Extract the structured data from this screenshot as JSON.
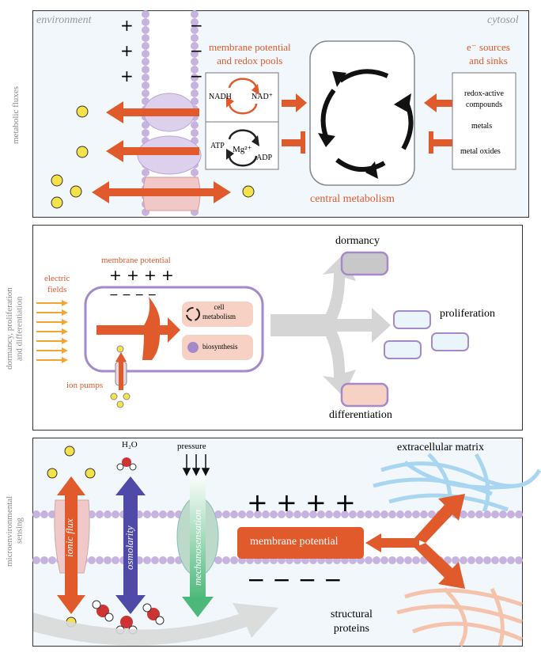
{
  "panel1": {
    "side_label": "metabolic fluxes",
    "environment": "environment",
    "cytosol": "cytosol",
    "membrane_potential_line1": "membrane potential",
    "membrane_potential_line2": "and redox pools",
    "electron_sources_line1": "e⁻ sources",
    "electron_sources_line2": "and sinks",
    "nadh": "NADH",
    "nad": "NAD⁺",
    "atp": "ATP",
    "mg": "Mg²⁺",
    "adp": "ADP",
    "redox_active_line1": "redox-active",
    "redox_active_line2": "compounds",
    "metals": "metals",
    "metal_oxides": "metal oxides",
    "central_metabolism": "central metabolism",
    "plus": "+",
    "minus": "−"
  },
  "panel2": {
    "side_label_line1": "dormancy, proliferation",
    "side_label_line2": "and differentiation",
    "electric_fields_line1": "electric",
    "electric_fields_line2": "fields",
    "membrane_potential": "membrane potential",
    "plus_row": "+ + + +",
    "minus_row": "− − − −",
    "cell_metabolism_line1": "cell",
    "cell_metabolism_line2": "metabolism",
    "biosynthesis": "biosynthesis",
    "ion_pumps": "ion pumps",
    "dormancy": "dormancy",
    "proliferation": "proliferation",
    "differentiation": "differentiation"
  },
  "panel3": {
    "side_label_line1": "microenvironmental",
    "side_label_line2": "sensing",
    "h2o": "H₂O",
    "pressure": "pressure",
    "ionic_flux": "ionic flux",
    "osmolarity": "osmolarity",
    "mechanosensation": "mechanosensation",
    "extracellular_matrix": "extracellular matrix",
    "membrane_potential": "membrane potential",
    "plus_row": "+ + + +",
    "minus_row": "− − − −",
    "structural_line1": "structural",
    "structural_line2": "proteins"
  },
  "colors": {
    "orange": "#e05a2b",
    "lipid": "#c6b3e0",
    "panel_bg": "#eef6fb",
    "purple": "#4f4aa8",
    "green": "#4cb879",
    "blue_fiber": "#a8d6f0",
    "pink_fiber": "#f5c2ac"
  }
}
